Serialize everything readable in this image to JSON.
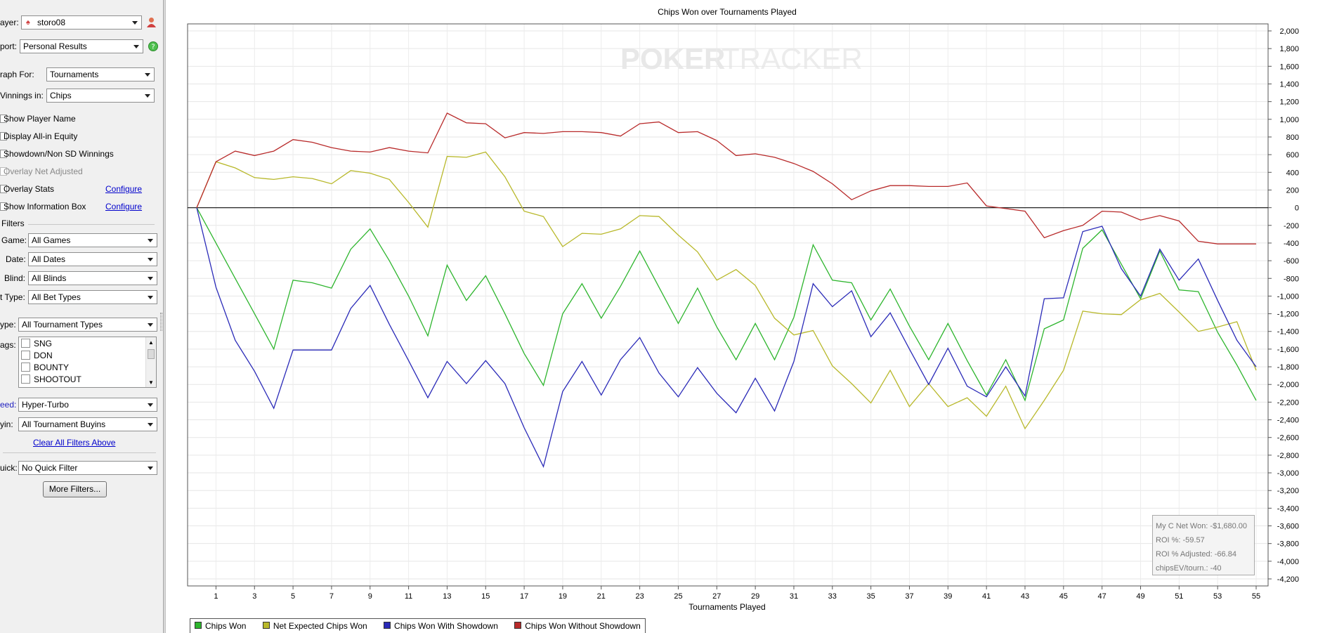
{
  "sidebar": {
    "player": {
      "label": "ayer:",
      "value": "storo08"
    },
    "report": {
      "label": "port:",
      "value": "Personal Results"
    },
    "graph_for": {
      "label": "raph For:",
      "value": "Tournaments"
    },
    "winnings_in": {
      "label": "Vinnings in:",
      "value": "Chips"
    },
    "options": [
      {
        "label": "Show Player Name",
        "enabled": true
      },
      {
        "label": "Display All-in Equity",
        "enabled": true
      },
      {
        "label": "Showdown/Non SD Winnings",
        "enabled": true
      },
      {
        "label": "Overlay Net Adjusted",
        "enabled": false
      },
      {
        "label": "Overlay Stats",
        "enabled": true,
        "link": "Configure"
      },
      {
        "label": "Show Information Box",
        "enabled": true,
        "link": "Configure"
      }
    ],
    "filters_heading": "Filters",
    "game": {
      "label": "Game:",
      "value": "All Games"
    },
    "date": {
      "label": "Date:",
      "value": "All Dates"
    },
    "blind": {
      "label": "Blind:",
      "value": "All Blinds"
    },
    "bet_type": {
      "label": "t Type:",
      "value": "All Bet Types"
    },
    "tourney_type": {
      "label": "ype:",
      "value": "All Tournament Types"
    },
    "tags_label": "ags:",
    "tags": [
      "SNG",
      "DON",
      "BOUNTY",
      "SHOOTOUT"
    ],
    "speed": {
      "label": "eed:",
      "value": "Hyper-Turbo"
    },
    "buyin": {
      "label": "yin:",
      "value": "All Tournament Buyins"
    },
    "clear_filters": "Clear All Filters Above",
    "quick": {
      "label": "uick:",
      "value": "No Quick Filter"
    },
    "more_filters": "More Filters..."
  },
  "watermark": {
    "left": "POKER",
    "right": "TRACKER"
  },
  "info_box": [
    "My C Net Won: -$1,680.00",
    "ROI %: -59.57",
    "ROI % Adjusted: -66.84",
    "chipsEV/tourn.: -40"
  ],
  "chart_data": {
    "type": "line",
    "title": "Chips Won over Tournaments Played",
    "xlabel": "Tournaments Played",
    "ylabel": "",
    "x_ticks": [
      1,
      3,
      5,
      7,
      9,
      11,
      13,
      15,
      17,
      19,
      21,
      23,
      25,
      27,
      29,
      31,
      33,
      35,
      37,
      39,
      41,
      43,
      45,
      47,
      49,
      51,
      53,
      55
    ],
    "y_ticks": [
      2000,
      1800,
      1600,
      1400,
      1200,
      1000,
      800,
      600,
      400,
      200,
      0,
      -200,
      -400,
      -600,
      -800,
      -1000,
      -1200,
      -1400,
      -1600,
      -1800,
      -2000,
      -2200,
      -2400,
      -2600,
      -2800,
      -3000,
      -3200,
      -3400,
      -3600,
      -3800,
      -4000,
      -4200
    ],
    "ylim": [
      -4200,
      2000
    ],
    "xlim": [
      0,
      55
    ],
    "grid": true,
    "legend_position": "bottom-left",
    "x": [
      0,
      1,
      2,
      3,
      4,
      5,
      6,
      7,
      8,
      9,
      10,
      11,
      12,
      13,
      14,
      15,
      16,
      17,
      18,
      19,
      20,
      21,
      22,
      23,
      24,
      25,
      26,
      27,
      28,
      29,
      30,
      31,
      32,
      33,
      34,
      35,
      36,
      37,
      38,
      39,
      40,
      41,
      42,
      43,
      44,
      45,
      46,
      47,
      48,
      49,
      50,
      51,
      52,
      53,
      54,
      55
    ],
    "series": [
      {
        "name": "Chips Won",
        "color": "#2db52d",
        "values": [
          0,
          -400,
          -800,
          -1200,
          -1600,
          -820,
          -850,
          -910,
          -470,
          -240,
          -600,
          -1000,
          -1450,
          -650,
          -1050,
          -770,
          -1200,
          -1650,
          -2010,
          -1200,
          -860,
          -1250,
          -890,
          -490,
          -900,
          -1310,
          -910,
          -1350,
          -1720,
          -1310,
          -1720,
          -1240,
          -420,
          -820,
          -850,
          -1270,
          -920,
          -1340,
          -1720,
          -1310,
          -1730,
          -2120,
          -1720,
          -2180,
          -1370,
          -1270,
          -460,
          -250,
          -640,
          -1030,
          -490,
          -930,
          -950,
          -1410,
          -1780,
          -2180
        ]
      },
      {
        "name": "Net Expected Chips Won",
        "color": "#b8b82a",
        "values": [
          0,
          520,
          450,
          340,
          320,
          350,
          330,
          270,
          420,
          390,
          320,
          60,
          -220,
          580,
          570,
          630,
          350,
          -40,
          -100,
          -440,
          -290,
          -300,
          -240,
          -90,
          -100,
          -310,
          -500,
          -820,
          -700,
          -880,
          -1250,
          -1440,
          -1390,
          -1790,
          -1990,
          -2210,
          -1840,
          -2250,
          -1990,
          -2250,
          -2150,
          -2360,
          -2020,
          -2500,
          -2180,
          -1840,
          -1170,
          -1200,
          -1210,
          -1040,
          -970,
          -1180,
          -1400,
          -1350,
          -1290,
          -1840
        ]
      },
      {
        "name": "Chips Won With Showdown",
        "color": "#2a2ab8",
        "values": [
          0,
          -900,
          -1500,
          -1850,
          -2270,
          -1610,
          -1610,
          -1610,
          -1140,
          -880,
          -1320,
          -1730,
          -2150,
          -1740,
          -1990,
          -1730,
          -1990,
          -2490,
          -2930,
          -2080,
          -1740,
          -2120,
          -1720,
          -1470,
          -1870,
          -2140,
          -1810,
          -2100,
          -2320,
          -1930,
          -2300,
          -1740,
          -860,
          -1120,
          -940,
          -1460,
          -1190,
          -1600,
          -2000,
          -1590,
          -2020,
          -2140,
          -1800,
          -2130,
          -1030,
          -1020,
          -270,
          -210,
          -690,
          -1000,
          -470,
          -820,
          -580,
          -1050,
          -1500,
          -1800
        ]
      },
      {
        "name": "Chips Won Without Showdown",
        "color": "#b82a2a",
        "values": [
          0,
          520,
          640,
          590,
          640,
          770,
          740,
          680,
          640,
          630,
          680,
          640,
          620,
          1070,
          960,
          950,
          790,
          850,
          840,
          860,
          860,
          850,
          810,
          950,
          970,
          850,
          860,
          760,
          590,
          610,
          570,
          500,
          410,
          270,
          90,
          190,
          250,
          250,
          240,
          240,
          280,
          20,
          -10,
          -40,
          -340,
          -260,
          -200,
          -40,
          -50,
          -140,
          -90,
          -150,
          -380,
          -410,
          -410,
          -410
        ]
      }
    ]
  }
}
